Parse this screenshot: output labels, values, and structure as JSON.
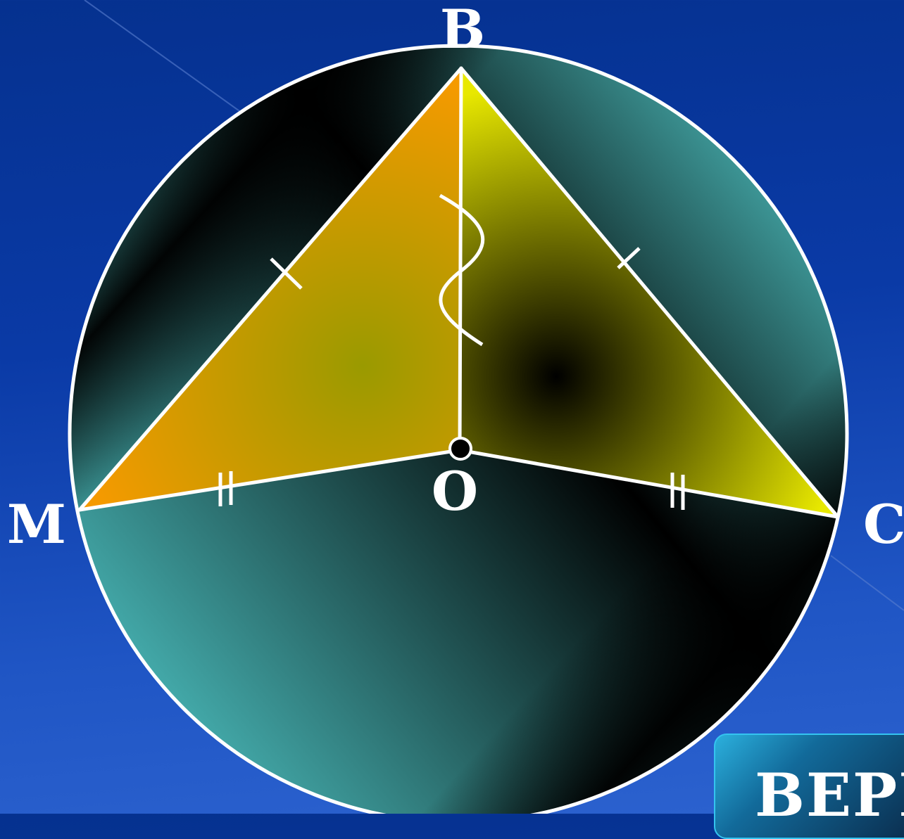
{
  "diagram": {
    "points": {
      "B": "B",
      "M": "M",
      "C": "C",
      "O": "O"
    },
    "colors": {
      "background": "#0a3aa6",
      "circle_teal": "#44aaab",
      "triangle_left": "#f09a00",
      "triangle_right": "#e8e800",
      "stroke": "#ffffff"
    }
  },
  "answer_button": {
    "label": "ВЕРН"
  }
}
